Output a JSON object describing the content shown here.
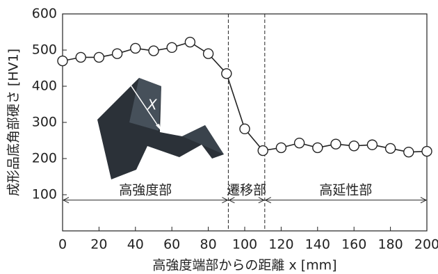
{
  "chart_data": {
    "type": "line",
    "x_label": "高強度端部からの距離 x [mm]",
    "y_label": "成形品底角部硬さ [HV1]",
    "x": [
      0,
      10,
      20,
      30,
      40,
      50,
      60,
      70,
      80,
      90,
      100,
      110,
      120,
      130,
      140,
      150,
      160,
      170,
      180,
      190,
      200
    ],
    "values": [
      470,
      480,
      480,
      490,
      505,
      498,
      507,
      522,
      490,
      435,
      282,
      222,
      230,
      243,
      230,
      240,
      235,
      238,
      228,
      218,
      220
    ],
    "color": "#222222",
    "xlim": [
      0,
      200
    ],
    "xticks": [
      0,
      20,
      40,
      60,
      80,
      100,
      120,
      140,
      160,
      180,
      200
    ],
    "ylim": [
      0,
      600
    ],
    "yticks": [
      100,
      200,
      300,
      400,
      500,
      600
    ],
    "regions": [
      {
        "label": "高強度部",
        "range": [
          0,
          91
        ]
      },
      {
        "label": "遷移部",
        "range": [
          91,
          111
        ]
      },
      {
        "label": "高延性部",
        "range": [
          111,
          200
        ]
      }
    ],
    "region_arrow_y": 85,
    "inset_annotation": "X"
  }
}
